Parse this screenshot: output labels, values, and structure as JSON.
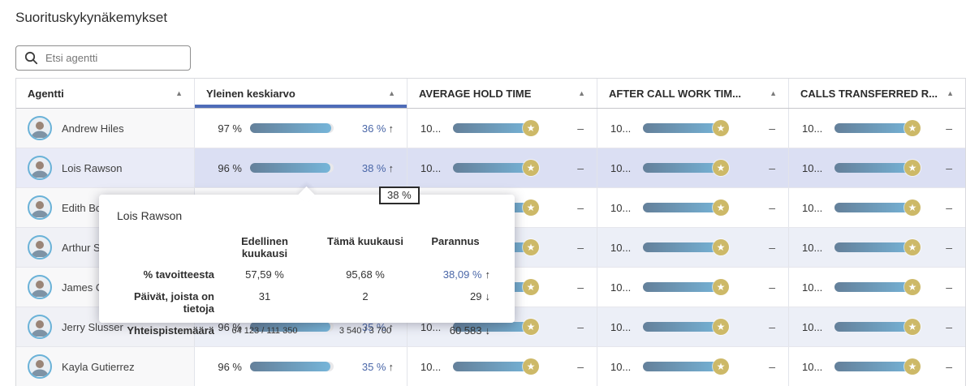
{
  "page": {
    "title": "Suorituskykynäkemykset"
  },
  "search": {
    "placeholder": "Etsi agentti"
  },
  "icons": {
    "search": "search-magnifier",
    "sort_asc": "▲",
    "star": "★",
    "arrow_up": "↑",
    "arrow_down": "↓"
  },
  "colors": {
    "accent_blue": "#4e6cb8",
    "change_blue": "#4a67a8",
    "bar_gradient_start": "#64809a",
    "bar_gradient_end": "#76b5d9",
    "star_gold": "#cdb968",
    "selected_row": "#dbdff3",
    "striped_row": "#eceff7"
  },
  "table": {
    "columns": [
      {
        "label": "Agentti",
        "selected": false
      },
      {
        "label": "Yleinen keskiarvo",
        "selected": true
      },
      {
        "label": "AVERAGE HOLD TIME",
        "selected": false
      },
      {
        "label": "AFTER CALL WORK TIM...",
        "selected": false
      },
      {
        "label": "CALLS TRANSFERRED R...",
        "selected": false
      }
    ],
    "rows": [
      {
        "name": "Andrew Hiles",
        "selected": false,
        "striped": false,
        "overall": {
          "value": "97 %",
          "pct": 97,
          "change": "36 %",
          "arrow": "↑"
        },
        "metrics": [
          {
            "value": "10...",
            "pct": 100,
            "star": true,
            "delta": "–"
          },
          {
            "value": "10...",
            "pct": 100,
            "star": true,
            "delta": "–"
          },
          {
            "value": "10...",
            "pct": 100,
            "star": true,
            "delta": "–"
          }
        ]
      },
      {
        "name": "Lois Rawson",
        "selected": true,
        "striped": false,
        "overall": {
          "value": "96 %",
          "pct": 96,
          "change": "38 %",
          "arrow": "↑"
        },
        "metrics": [
          {
            "value": "10...",
            "pct": 100,
            "star": true,
            "delta": "–"
          },
          {
            "value": "10...",
            "pct": 100,
            "star": true,
            "delta": "–"
          },
          {
            "value": "10...",
            "pct": 100,
            "star": true,
            "delta": "–"
          }
        ]
      },
      {
        "name": "Edith Bo",
        "selected": false,
        "striped": false,
        "overall": {
          "value": "",
          "pct": null,
          "change": "",
          "arrow": ""
        },
        "metrics": [
          {
            "value": "10...",
            "pct": 100,
            "star": true,
            "delta": "–"
          },
          {
            "value": "10...",
            "pct": 100,
            "star": true,
            "delta": "–"
          },
          {
            "value": "10...",
            "pct": 100,
            "star": true,
            "delta": "–"
          }
        ]
      },
      {
        "name": "Arthur S",
        "selected": false,
        "striped": true,
        "overall": {
          "value": "",
          "pct": null,
          "change": "",
          "arrow": ""
        },
        "metrics": [
          {
            "value": "10...",
            "pct": 100,
            "star": true,
            "delta": "–"
          },
          {
            "value": "10...",
            "pct": 100,
            "star": true,
            "delta": "–"
          },
          {
            "value": "10...",
            "pct": 100,
            "star": true,
            "delta": "–"
          }
        ]
      },
      {
        "name": "James C",
        "selected": false,
        "striped": false,
        "overall": {
          "value": "",
          "pct": null,
          "change": "",
          "arrow": ""
        },
        "metrics": [
          {
            "value": "10...",
            "pct": 100,
            "star": true,
            "delta": "–"
          },
          {
            "value": "10...",
            "pct": 100,
            "star": true,
            "delta": "–"
          },
          {
            "value": "10...",
            "pct": 100,
            "star": true,
            "delta": "–"
          }
        ]
      },
      {
        "name": "Jerry Slusser",
        "selected": false,
        "striped": true,
        "overall": {
          "value": "96 %",
          "pct": 96,
          "change": "35 %",
          "arrow": "↑"
        },
        "metrics": [
          {
            "value": "10...",
            "pct": 100,
            "star": true,
            "delta": "–"
          },
          {
            "value": "10...",
            "pct": 100,
            "star": true,
            "delta": "–"
          },
          {
            "value": "10...",
            "pct": 100,
            "star": true,
            "delta": "–"
          }
        ]
      },
      {
        "name": "Kayla Gutierrez",
        "selected": false,
        "striped": false,
        "overall": {
          "value": "96 %",
          "pct": 96,
          "change": "35 %",
          "arrow": "↑"
        },
        "metrics": [
          {
            "value": "10...",
            "pct": 100,
            "star": true,
            "delta": "–"
          },
          {
            "value": "10...",
            "pct": 100,
            "star": true,
            "delta": "–"
          },
          {
            "value": "10...",
            "pct": 100,
            "star": true,
            "delta": "–"
          }
        ]
      }
    ]
  },
  "bar_tooltip": {
    "text": "38 %"
  },
  "popover": {
    "title": "Lois Rawson",
    "columns": [
      "Edellinen kuukausi",
      "Tämä kuukausi",
      "Parannus"
    ],
    "rows": [
      {
        "label": "% tavoitteesta",
        "prev": "57,59 %",
        "current": "95,68 %",
        "improvement": "38,09 %",
        "arrow": "↑"
      },
      {
        "label": "Päivät, joista on tietoja",
        "prev": "31",
        "current": "2",
        "improvement": "29",
        "arrow": "↓"
      },
      {
        "label": "Yhteispistemäärä",
        "prev": "64 123 / 111 350",
        "current": "3 540 / 3 700",
        "improvement": "60 583",
        "arrow": "↓"
      }
    ]
  }
}
